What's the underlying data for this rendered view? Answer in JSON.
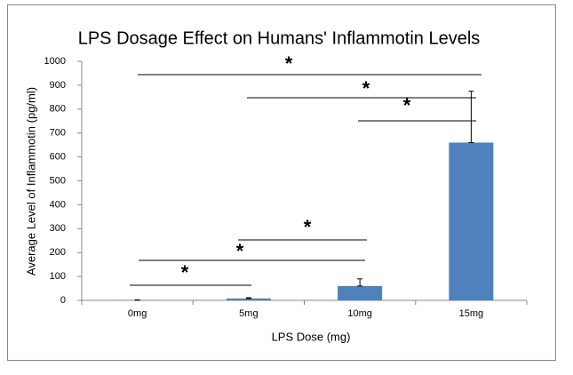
{
  "chart_data": {
    "type": "bar",
    "title": "LPS Dosage Effect on Humans' Inflammotin Levels",
    "x_label": "LPS Dose (mg)",
    "y_label": "Average Level of Inflammotin (pg/ml)",
    "categories": [
      "0mg",
      "5mg",
      "10mg",
      "15mg"
    ],
    "values": [
      1,
      8,
      60,
      660
    ],
    "errors": [
      1,
      3,
      30,
      215
    ],
    "color": "#4f81bd",
    "ylim": [
      0,
      1000
    ],
    "yticks": [
      0,
      100,
      200,
      300,
      400,
      500,
      600,
      700,
      800,
      900,
      1000
    ],
    "grid": false,
    "annotations": [
      "*",
      "*",
      "*",
      "*",
      "*",
      "*"
    ]
  }
}
